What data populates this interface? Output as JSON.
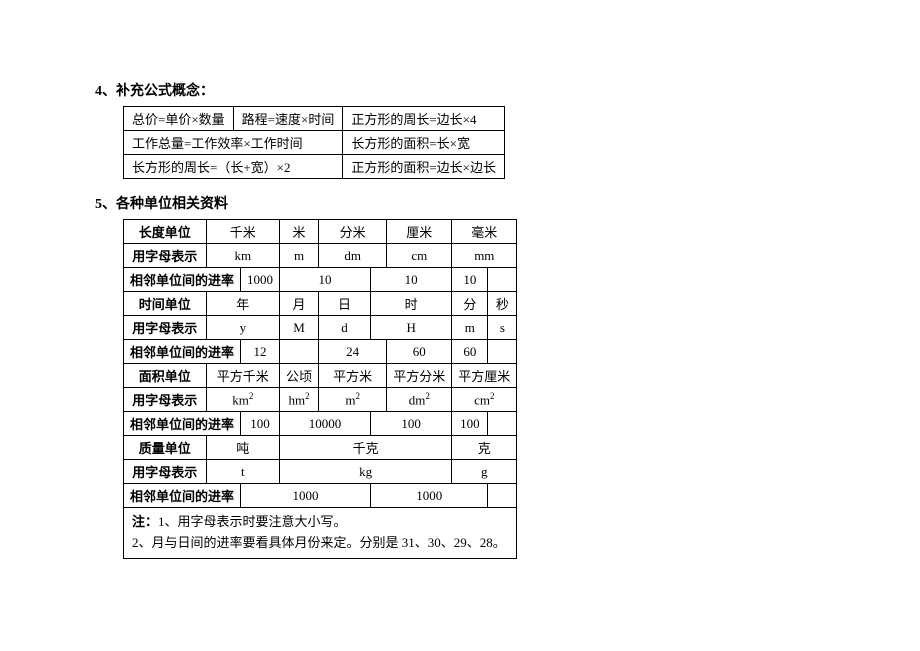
{
  "headings": {
    "h4": "4、补充公式概念：",
    "h5": "5、各种单位相关资料"
  },
  "formula": {
    "r1c1": "总价=单价×数量",
    "r1c2": "路程=速度×时间",
    "r1c3": "正方形的周长=边长×4",
    "r2c1": "工作总量=工作效率×工作时间",
    "r2c2": "长方形的面积=长×宽",
    "r3c1": "长方形的周长=（长+宽）×2",
    "r3c2": "正方形的面积=边长×边长"
  },
  "units": {
    "length": {
      "label": "长度单位",
      "names": [
        "千米",
        "米",
        "分米",
        "厘米",
        "毫米"
      ],
      "letter_label": "用字母表示",
      "letters": [
        "km",
        "m",
        "dm",
        "cm",
        "mm"
      ],
      "rate_label": "相邻单位间的进率",
      "rates": [
        "1000",
        "10",
        "10",
        "10"
      ]
    },
    "time": {
      "label": "时间单位",
      "names": [
        "年",
        "月",
        "日",
        "时",
        "分",
        "秒"
      ],
      "letter_label": "用字母表示",
      "letters": [
        "y",
        "M",
        "d",
        "H",
        "m",
        "s"
      ],
      "rate_label": "相邻单位间的进率",
      "rates": [
        "12",
        "",
        "24",
        "60",
        "60"
      ]
    },
    "area": {
      "label": "面积单位",
      "names_html": [
        "平方千米",
        "公顷",
        "平方米",
        "平方分米",
        "平方厘米"
      ],
      "letter_label": "用字母表示",
      "rate_label": "相邻单位间的进率",
      "rates": [
        "100",
        "10000",
        "100",
        "100"
      ]
    },
    "mass": {
      "label": "质量单位",
      "names": [
        "吨",
        "千克",
        "克"
      ],
      "letter_label": "用字母表示",
      "letters": [
        "t",
        "kg",
        "g"
      ],
      "rate_label": "相邻单位间的进率",
      "rates": [
        "1000",
        "1000"
      ]
    },
    "note_prefix": "注：",
    "note1": "1、用字母表示时要注意大小写。",
    "note2": "2、月与日间的进率要看具体月份来定。分别是 31、30、29、28。"
  }
}
